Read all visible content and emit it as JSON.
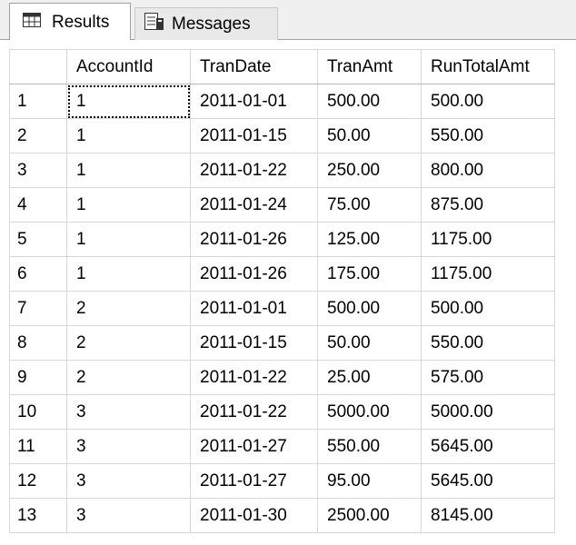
{
  "tabs": [
    {
      "label": "Results",
      "icon": "grid-icon",
      "active": true
    },
    {
      "label": "Messages",
      "icon": "messages-icon",
      "active": false
    }
  ],
  "table": {
    "columns": [
      "",
      "AccountId",
      "TranDate",
      "TranAmt",
      "RunTotalAmt"
    ],
    "rows": [
      [
        "1",
        "1",
        "2011-01-01",
        "500.00",
        "500.00"
      ],
      [
        "2",
        "1",
        "2011-01-15",
        "50.00",
        "550.00"
      ],
      [
        "3",
        "1",
        "2011-01-22",
        "250.00",
        "800.00"
      ],
      [
        "4",
        "1",
        "2011-01-24",
        "75.00",
        "875.00"
      ],
      [
        "5",
        "1",
        "2011-01-26",
        "125.00",
        "1175.00"
      ],
      [
        "6",
        "1",
        "2011-01-26",
        "175.00",
        "1175.00"
      ],
      [
        "7",
        "2",
        "2011-01-01",
        "500.00",
        "500.00"
      ],
      [
        "8",
        "2",
        "2011-01-15",
        "50.00",
        "550.00"
      ],
      [
        "9",
        "2",
        "2011-01-22",
        "25.00",
        "575.00"
      ],
      [
        "10",
        "3",
        "2011-01-22",
        "5000.00",
        "5000.00"
      ],
      [
        "11",
        "3",
        "2011-01-27",
        "550.00",
        "5645.00"
      ],
      [
        "12",
        "3",
        "2011-01-27",
        "95.00",
        "5645.00"
      ],
      [
        "13",
        "3",
        "2011-01-30",
        "2500.00",
        "8145.00"
      ]
    ]
  }
}
